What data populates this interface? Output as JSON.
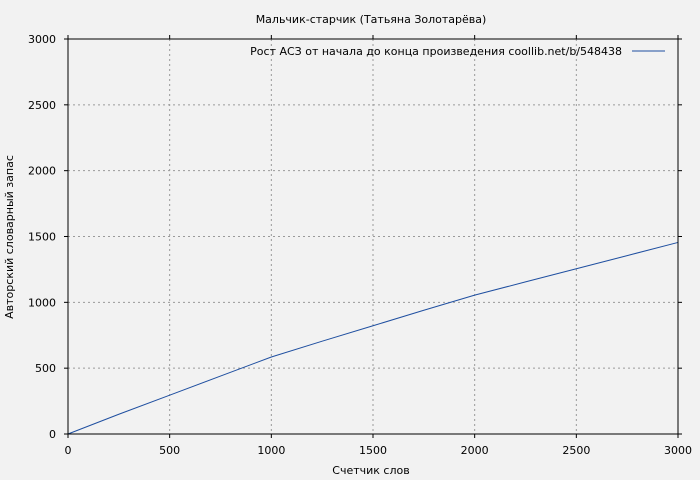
{
  "chart_data": {
    "type": "line",
    "title": "Мальчик-старчик (Татьяна Золотарёва)",
    "xlabel": "Счетчик слов",
    "ylabel": "Авторский словарный запас",
    "xlim": [
      0,
      3000
    ],
    "ylim": [
      0,
      3000
    ],
    "xticks": [
      "0",
      "500",
      "1000",
      "1500",
      "2000",
      "2500",
      "3000"
    ],
    "yticks": [
      "0",
      "500",
      "1000",
      "1500",
      "2000",
      "2500",
      "3000"
    ],
    "grid": true,
    "legend_position": "top-right",
    "series": [
      {
        "name": "Рост АСЗ от начала до конца произведения  coollib.net/b/548438",
        "color": "#1f4fa0",
        "x": [
          0,
          250,
          500,
          750,
          1000,
          1250,
          1500,
          1750,
          2000,
          2250,
          2500,
          2750,
          3000
        ],
        "y": [
          0,
          150,
          295,
          440,
          585,
          705,
          822,
          940,
          1055,
          1155,
          1255,
          1355,
          1455
        ]
      }
    ]
  }
}
